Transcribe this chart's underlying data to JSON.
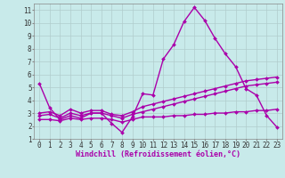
{
  "background_color": "#c8eaea",
  "grid_color": "#b0cccc",
  "line_color": "#aa00aa",
  "xlabel": "Windchill (Refroidissement éolien,°C)",
  "xlim": [
    -0.5,
    23.5
  ],
  "ylim": [
    1,
    11.5
  ],
  "yticks": [
    1,
    2,
    3,
    4,
    5,
    6,
    7,
    8,
    9,
    10,
    11
  ],
  "xticks": [
    0,
    1,
    2,
    3,
    4,
    5,
    6,
    7,
    8,
    9,
    10,
    11,
    12,
    13,
    14,
    15,
    16,
    17,
    18,
    19,
    20,
    21,
    22,
    23
  ],
  "series": [
    {
      "x": [
        0,
        1,
        2,
        3,
        4,
        5,
        6,
        7,
        8,
        9,
        10,
        11,
        12,
        13,
        14,
        15,
        16,
        17,
        18,
        19,
        20,
        21,
        22,
        23
      ],
      "y": [
        5.3,
        3.4,
        2.5,
        2.8,
        2.6,
        3.0,
        3.0,
        2.2,
        1.5,
        2.7,
        4.5,
        4.4,
        7.2,
        8.3,
        10.1,
        11.2,
        10.2,
        8.8,
        7.6,
        6.6,
        4.9,
        4.4,
        2.8,
        1.9
      ],
      "marker": "D",
      "linewidth": 1.0,
      "markersize": 2.0
    },
    {
      "x": [
        0,
        1,
        2,
        3,
        4,
        5,
        6,
        7,
        8,
        9,
        10,
        11,
        12,
        13,
        14,
        15,
        16,
        17,
        18,
        19,
        20,
        21,
        22,
        23
      ],
      "y": [
        3.0,
        3.1,
        2.8,
        3.3,
        3.0,
        3.2,
        3.2,
        2.9,
        2.8,
        3.1,
        3.5,
        3.7,
        3.9,
        4.1,
        4.3,
        4.5,
        4.7,
        4.9,
        5.1,
        5.3,
        5.5,
        5.6,
        5.7,
        5.8
      ],
      "marker": "D",
      "linewidth": 1.0,
      "markersize": 2.0
    },
    {
      "x": [
        0,
        1,
        2,
        3,
        4,
        5,
        6,
        7,
        8,
        9,
        10,
        11,
        12,
        13,
        14,
        15,
        16,
        17,
        18,
        19,
        20,
        21,
        22,
        23
      ],
      "y": [
        2.8,
        2.9,
        2.6,
        3.0,
        2.8,
        3.0,
        3.0,
        2.8,
        2.6,
        2.9,
        3.1,
        3.3,
        3.5,
        3.7,
        3.9,
        4.1,
        4.3,
        4.5,
        4.7,
        4.9,
        5.1,
        5.2,
        5.3,
        5.4
      ],
      "marker": "D",
      "linewidth": 1.0,
      "markersize": 2.0
    },
    {
      "x": [
        0,
        1,
        2,
        3,
        4,
        5,
        6,
        7,
        8,
        9,
        10,
        11,
        12,
        13,
        14,
        15,
        16,
        17,
        18,
        19,
        20,
        21,
        22,
        23
      ],
      "y": [
        2.5,
        2.5,
        2.4,
        2.6,
        2.5,
        2.6,
        2.6,
        2.5,
        2.3,
        2.5,
        2.7,
        2.7,
        2.7,
        2.8,
        2.8,
        2.9,
        2.9,
        3.0,
        3.0,
        3.1,
        3.1,
        3.2,
        3.2,
        3.3
      ],
      "marker": "D",
      "linewidth": 1.0,
      "markersize": 2.0
    }
  ],
  "xlabel_fontsize": 6.0,
  "tick_fontsize": 5.5
}
